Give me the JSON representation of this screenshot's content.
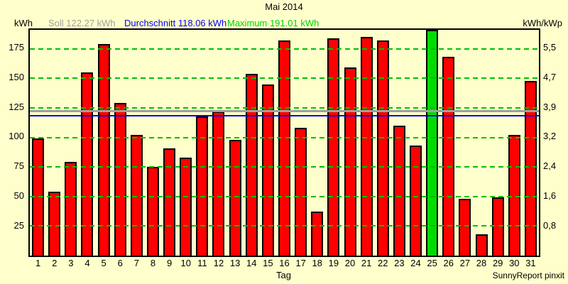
{
  "title": "Mai 2014",
  "header": {
    "unit_left": "kWh",
    "soll_label": "Soll 122.27 kWh",
    "durchschnitt_label": "Durchschnitt 118.06 kWh",
    "maximum_label": "Maximum 191.01 kWh",
    "unit_right": "kWh/kWp"
  },
  "footer": "SunnyReport pinxit",
  "chart_data": {
    "type": "bar",
    "title": "Mai 2014",
    "xlabel": "Tag",
    "ylabel_left": "kWh",
    "ylabel_right": "kWh/kWp",
    "ylim": [
      0,
      191.01
    ],
    "grid": true,
    "categories": [
      1,
      2,
      3,
      4,
      5,
      6,
      7,
      8,
      9,
      10,
      11,
      12,
      13,
      14,
      15,
      16,
      17,
      18,
      19,
      20,
      21,
      22,
      23,
      24,
      25,
      26,
      27,
      28,
      29,
      30,
      31
    ],
    "values": [
      99,
      54,
      79,
      155,
      179,
      129,
      102,
      75,
      91,
      83,
      118,
      122,
      98,
      154,
      145,
      182,
      108,
      37,
      184,
      159,
      185,
      182,
      110,
      93,
      191.01,
      168,
      48,
      18,
      49,
      102,
      148
    ],
    "y_axis_left_ticks": [
      25,
      50,
      75,
      100,
      125,
      150,
      175
    ],
    "y_axis_right_tick_labels": [
      "0,8",
      "1,6",
      "2,4",
      "3,2",
      "3,9",
      "4,7",
      "5,5"
    ],
    "reference_lines": {
      "soll": {
        "label": "Soll",
        "value": 122.27,
        "color": "#a0a0a0"
      },
      "durchschnitt": {
        "label": "Durchschnitt",
        "value": 118.06,
        "color": "#0000ff"
      }
    },
    "maximum": {
      "day": 25,
      "value": 191.01,
      "color": "#00dc00"
    },
    "colors": {
      "bar": "#ff0000",
      "bar_max": "#00dc00",
      "grid": "#00c000",
      "background": "#ffffcc"
    }
  }
}
